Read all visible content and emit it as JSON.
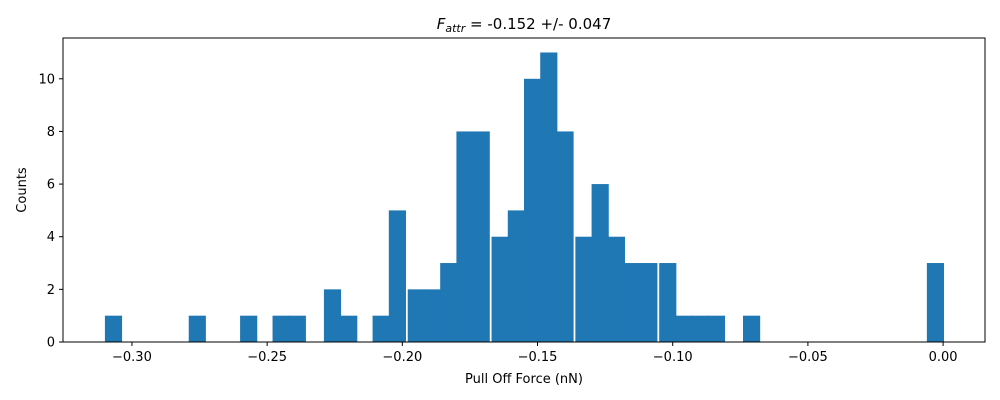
{
  "chart_data": {
    "type": "bar",
    "title_symbol": "F",
    "title_subscript": "attr",
    "title_rest": " = -0.152 +/- 0.047",
    "xlabel": "Pull Off Force (nN)",
    "ylabel": "Counts",
    "xlim": [
      -0.3255,
      0.0155
    ],
    "ylim": [
      0,
      11.55
    ],
    "x_ticks": [
      -0.3,
      -0.25,
      -0.2,
      -0.15,
      -0.1,
      -0.05,
      0.0
    ],
    "x_tick_labels": [
      "−0.30",
      "−0.25",
      "−0.20",
      "−0.15",
      "−0.10",
      "−0.05",
      "0.00"
    ],
    "y_ticks": [
      0,
      2,
      4,
      6,
      8,
      10
    ],
    "y_tick_labels": [
      "0",
      "2",
      "4",
      "6",
      "8",
      "10"
    ],
    "bin_width": 0.0062,
    "bin_starts": [
      -0.31,
      -0.279,
      -0.26,
      -0.248,
      -0.242,
      -0.229,
      -0.223,
      -0.211,
      -0.205,
      -0.198,
      -0.192,
      -0.186,
      -0.18,
      -0.174,
      -0.167,
      -0.161,
      -0.155,
      -0.149,
      -0.143,
      -0.136,
      -0.13,
      -0.124,
      -0.118,
      -0.112,
      -0.105,
      -0.099,
      -0.093,
      -0.087,
      -0.074,
      -0.006
    ],
    "counts": [
      1,
      1,
      1,
      1,
      1,
      2,
      1,
      1,
      5,
      2,
      2,
      3,
      8,
      8,
      4,
      5,
      10,
      11,
      8,
      4,
      6,
      4,
      3,
      3,
      3,
      1,
      1,
      1,
      1,
      3
    ],
    "bar_color": "#1f77b4",
    "grid": false,
    "legend": "none"
  }
}
